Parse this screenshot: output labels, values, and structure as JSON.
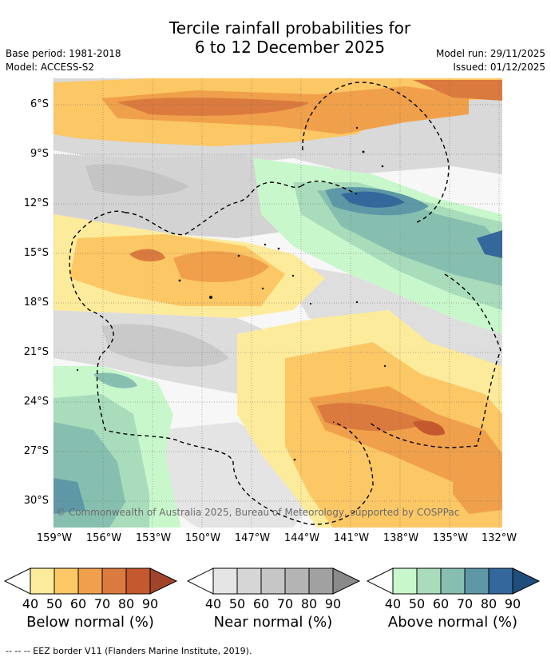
{
  "title": {
    "line1": "Tercile rainfall probabilities for",
    "line2": "6 to 12 December 2025"
  },
  "meta": {
    "base_period": "Base period: 1981-2018",
    "model": "Model: ACCESS-S2",
    "model_run": "Model run: 29/11/2025",
    "issued": "Issued: 01/12/2025"
  },
  "map": {
    "latitude_labels": [
      "6°S",
      "9°S",
      "12°S",
      "15°S",
      "18°S",
      "21°S",
      "24°S",
      "27°S",
      "30°S"
    ],
    "longitude_labels": [
      "159°W",
      "156°W",
      "153°W",
      "150°W",
      "147°W",
      "144°W",
      "141°W",
      "138°W",
      "135°W",
      "132°W"
    ],
    "credit": "© Commonwealth of Australia 2025, Bureau of Meteorology, supported by COSPPac"
  },
  "legends": [
    {
      "title": "Below normal (%)",
      "ticks": [
        "40",
        "50",
        "60",
        "70",
        "80",
        "90"
      ],
      "colors": [
        "#fdeb9c",
        "#fcc765",
        "#f0a04b",
        "#db7a3e",
        "#c4582f",
        "#a1452a"
      ]
    },
    {
      "title": "Near normal (%)",
      "ticks": [
        "40",
        "50",
        "60",
        "70",
        "80",
        "90"
      ],
      "colors": [
        "#e5e5e5",
        "#d6d6d6",
        "#c6c6c6",
        "#b4b4b4",
        "#a1a1a1",
        "#8a8a8a"
      ]
    },
    {
      "title": "Above normal (%)",
      "ticks": [
        "40",
        "50",
        "60",
        "70",
        "80",
        "90"
      ],
      "colors": [
        "#c9f7cc",
        "#a9dcbb",
        "#86bfaf",
        "#5e98a7",
        "#34689c",
        "#1f4e7c"
      ]
    }
  ],
  "footnote": "--  --  -- EEZ border V11 (Flanders Marine Institute, 2019)."
}
